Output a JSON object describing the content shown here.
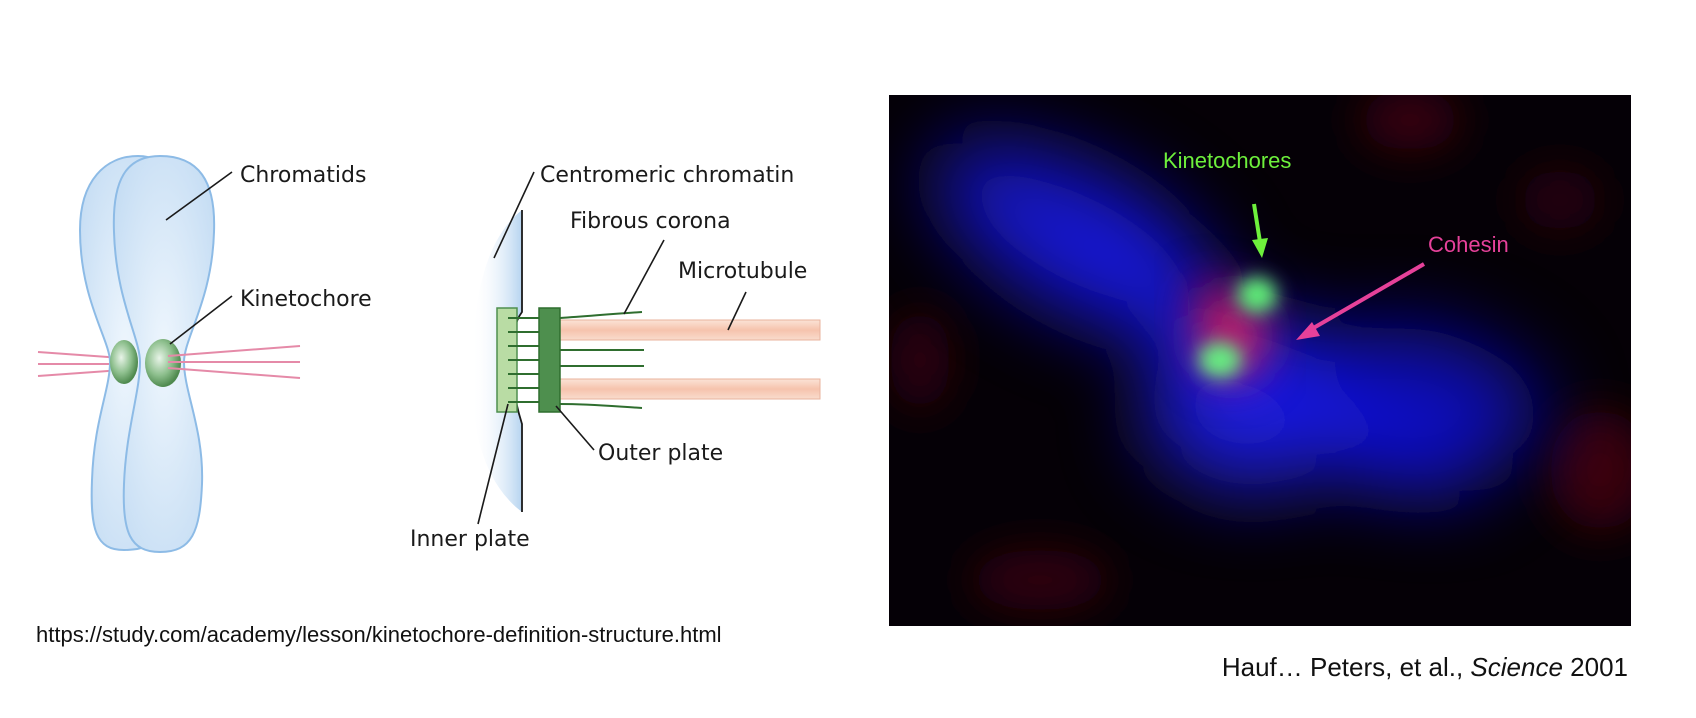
{
  "left_diagram": {
    "labels": {
      "chromatids": "Chromatids",
      "kinetochore": "Kinetochore"
    }
  },
  "middle_diagram": {
    "labels": {
      "centromeric_chromatin": "Centromeric chromatin",
      "fibrous_corona": "Fibrous corona",
      "microtubule": "Microtubule",
      "outer_plate": "Outer plate",
      "inner_plate": "Inner plate"
    }
  },
  "micrograph": {
    "labels": {
      "kinetochores": "Kinetochores",
      "cohesin": "Cohesin"
    }
  },
  "colors": {
    "chromatid_fill": "#d4e6f7",
    "chromatid_stroke": "#8dbbe6",
    "kinetochore_green": "#5f9a5f",
    "microtubule_pink": "#e58aa8",
    "microtubule_peach": "#f7c9b5",
    "plate_light_green": "#b9dca4",
    "plate_dark_green": "#4e8f4e",
    "kinetochores_label": "#6ef03c",
    "cohesin_label": "#e6419a"
  },
  "captions": {
    "source_url": "https://study.com/academy/lesson/kinetochore-definition-structure.html",
    "citation_authors": "Hauf… Peters, et al.,",
    "citation_journal": "Science",
    "citation_year": "2001"
  }
}
